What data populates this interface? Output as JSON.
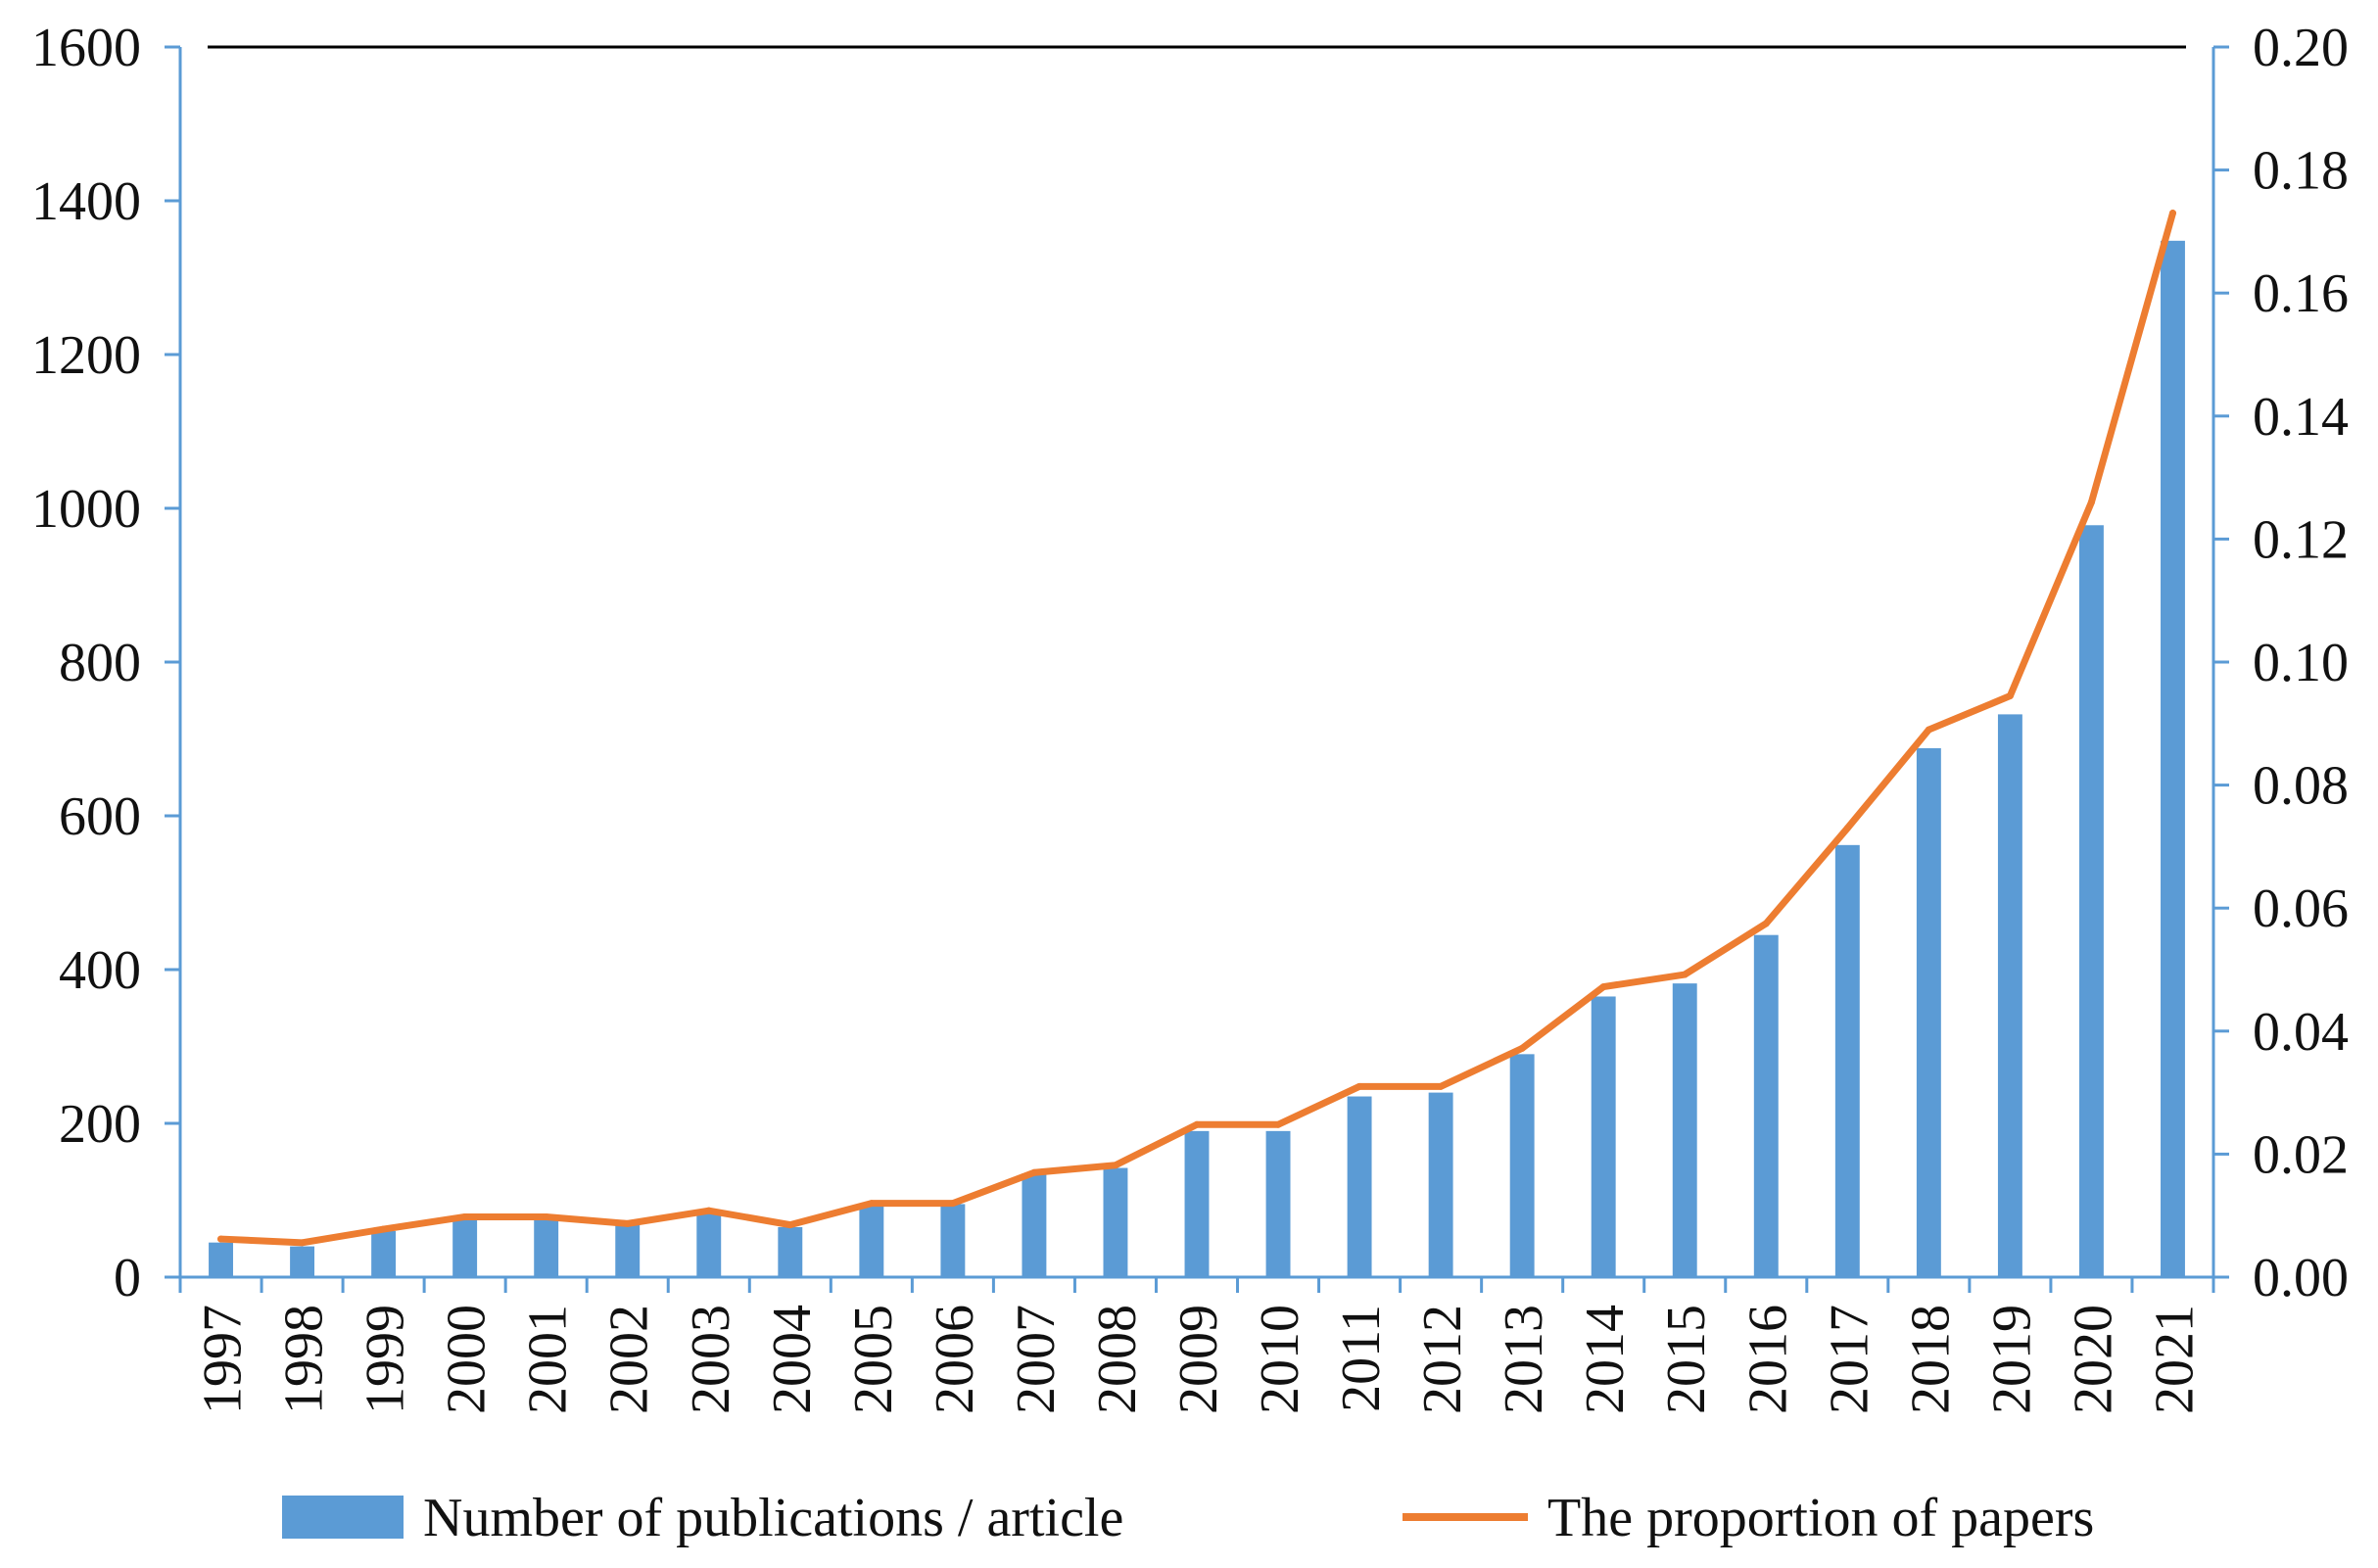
{
  "chart_data": {
    "type": "bar",
    "title": "",
    "xlabel": "",
    "ylabel": "",
    "y2label": "",
    "categories": [
      "1997",
      "1998",
      "1999",
      "2000",
      "2001",
      "2002",
      "2003",
      "2004",
      "2005",
      "2006",
      "2007",
      "2008",
      "2009",
      "2010",
      "2011",
      "2012",
      "2013",
      "2014",
      "2015",
      "2016",
      "2017",
      "2018",
      "2019",
      "2020",
      "2021"
    ],
    "series": [
      {
        "name": "Number of publications / article",
        "type": "bar",
        "axis": "left",
        "color": "#5b9bd5",
        "values": [
          45,
          40,
          60,
          78,
          78,
          70,
          85,
          65,
          95,
          95,
          135,
          142,
          190,
          190,
          235,
          240,
          290,
          365,
          382,
          445,
          562,
          688,
          732,
          978,
          1348
        ]
      },
      {
        "name": "The proportion of papers",
        "type": "line",
        "axis": "right",
        "color": "#ed7d31",
        "values": [
          0.0062,
          0.0056,
          0.0078,
          0.0098,
          0.0098,
          0.0087,
          0.0108,
          0.0085,
          0.012,
          0.012,
          0.017,
          0.0182,
          0.0248,
          0.0248,
          0.031,
          0.031,
          0.0372,
          0.0472,
          0.0492,
          0.0575,
          0.073,
          0.089,
          0.0945,
          0.126,
          0.173
        ]
      }
    ],
    "ylim": [
      0,
      1600
    ],
    "y_ticks": [
      0,
      200,
      400,
      600,
      800,
      1000,
      1200,
      1400,
      1600
    ],
    "y2lim": [
      0,
      0.2
    ],
    "y2_ticks": [
      "0.00",
      "0.02",
      "0.04",
      "0.06",
      "0.08",
      "0.10",
      "0.12",
      "0.14",
      "0.16",
      "0.18",
      "0.20"
    ],
    "grid": false,
    "legend_position": "bottom",
    "axis_color": "#5b9bd5"
  }
}
